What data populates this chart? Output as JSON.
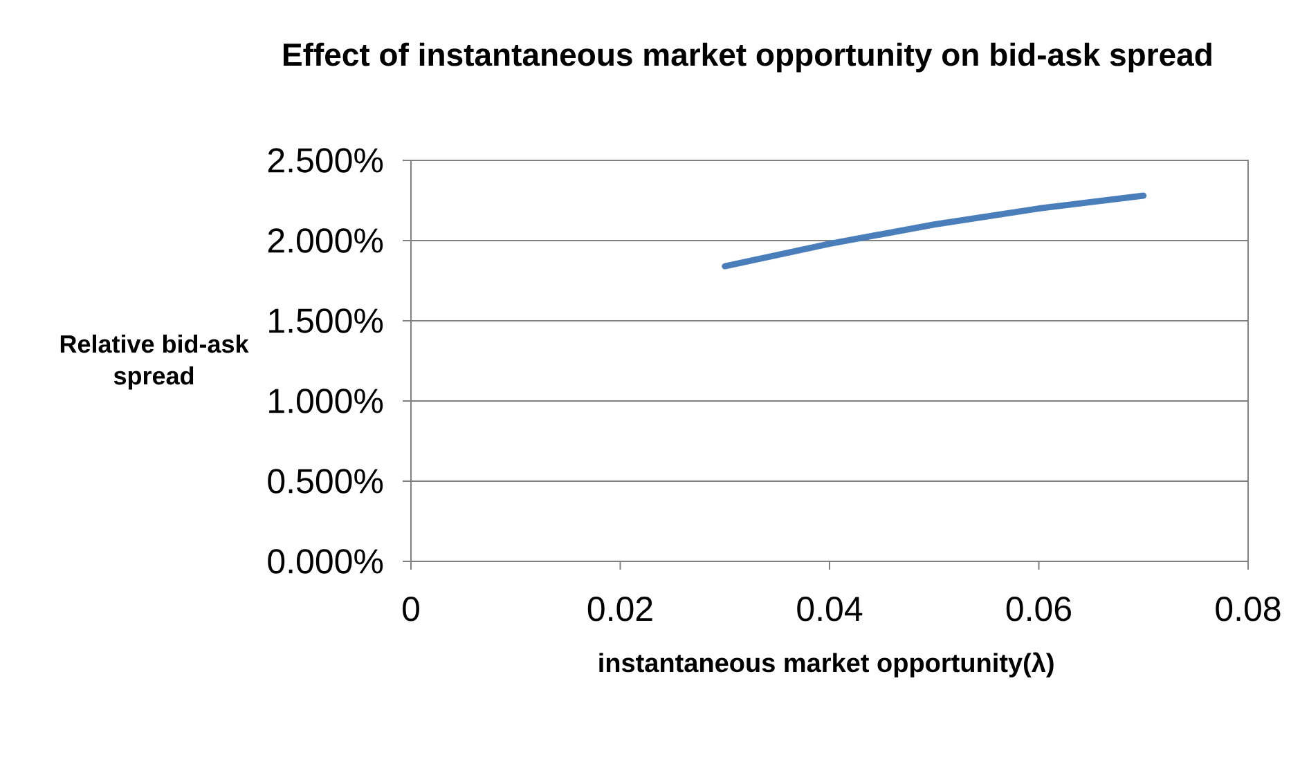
{
  "chart_data": {
    "type": "line",
    "title": "Effect of instantaneous market opportunity on bid-ask spread",
    "xlabel": "instantaneous market opportunity(λ)",
    "ylabel": "Relative bid-ask spread",
    "x": [
      0.03,
      0.04,
      0.05,
      0.06,
      0.07
    ],
    "series": [
      {
        "color": "#4a7ebb",
        "values": [
          1.84,
          1.98,
          2.1,
          2.2,
          2.28
        ]
      }
    ],
    "xlim": [
      0,
      0.08
    ],
    "xticks": [
      0,
      0.02,
      0.04,
      0.06,
      0.08
    ],
    "ylim": [
      0,
      2.5
    ],
    "yticks": [
      {
        "value": 0,
        "label": "0.000%"
      },
      {
        "value": 0.5,
        "label": "0.500%"
      },
      {
        "value": 1,
        "label": "1.000%"
      },
      {
        "value": 1.5,
        "label": "1.500%"
      },
      {
        "value": 2,
        "label": "2.000%"
      },
      {
        "value": 2.5,
        "label": "2.500%"
      }
    ],
    "grid": "y",
    "marker": "none",
    "line_style": "solid"
  }
}
